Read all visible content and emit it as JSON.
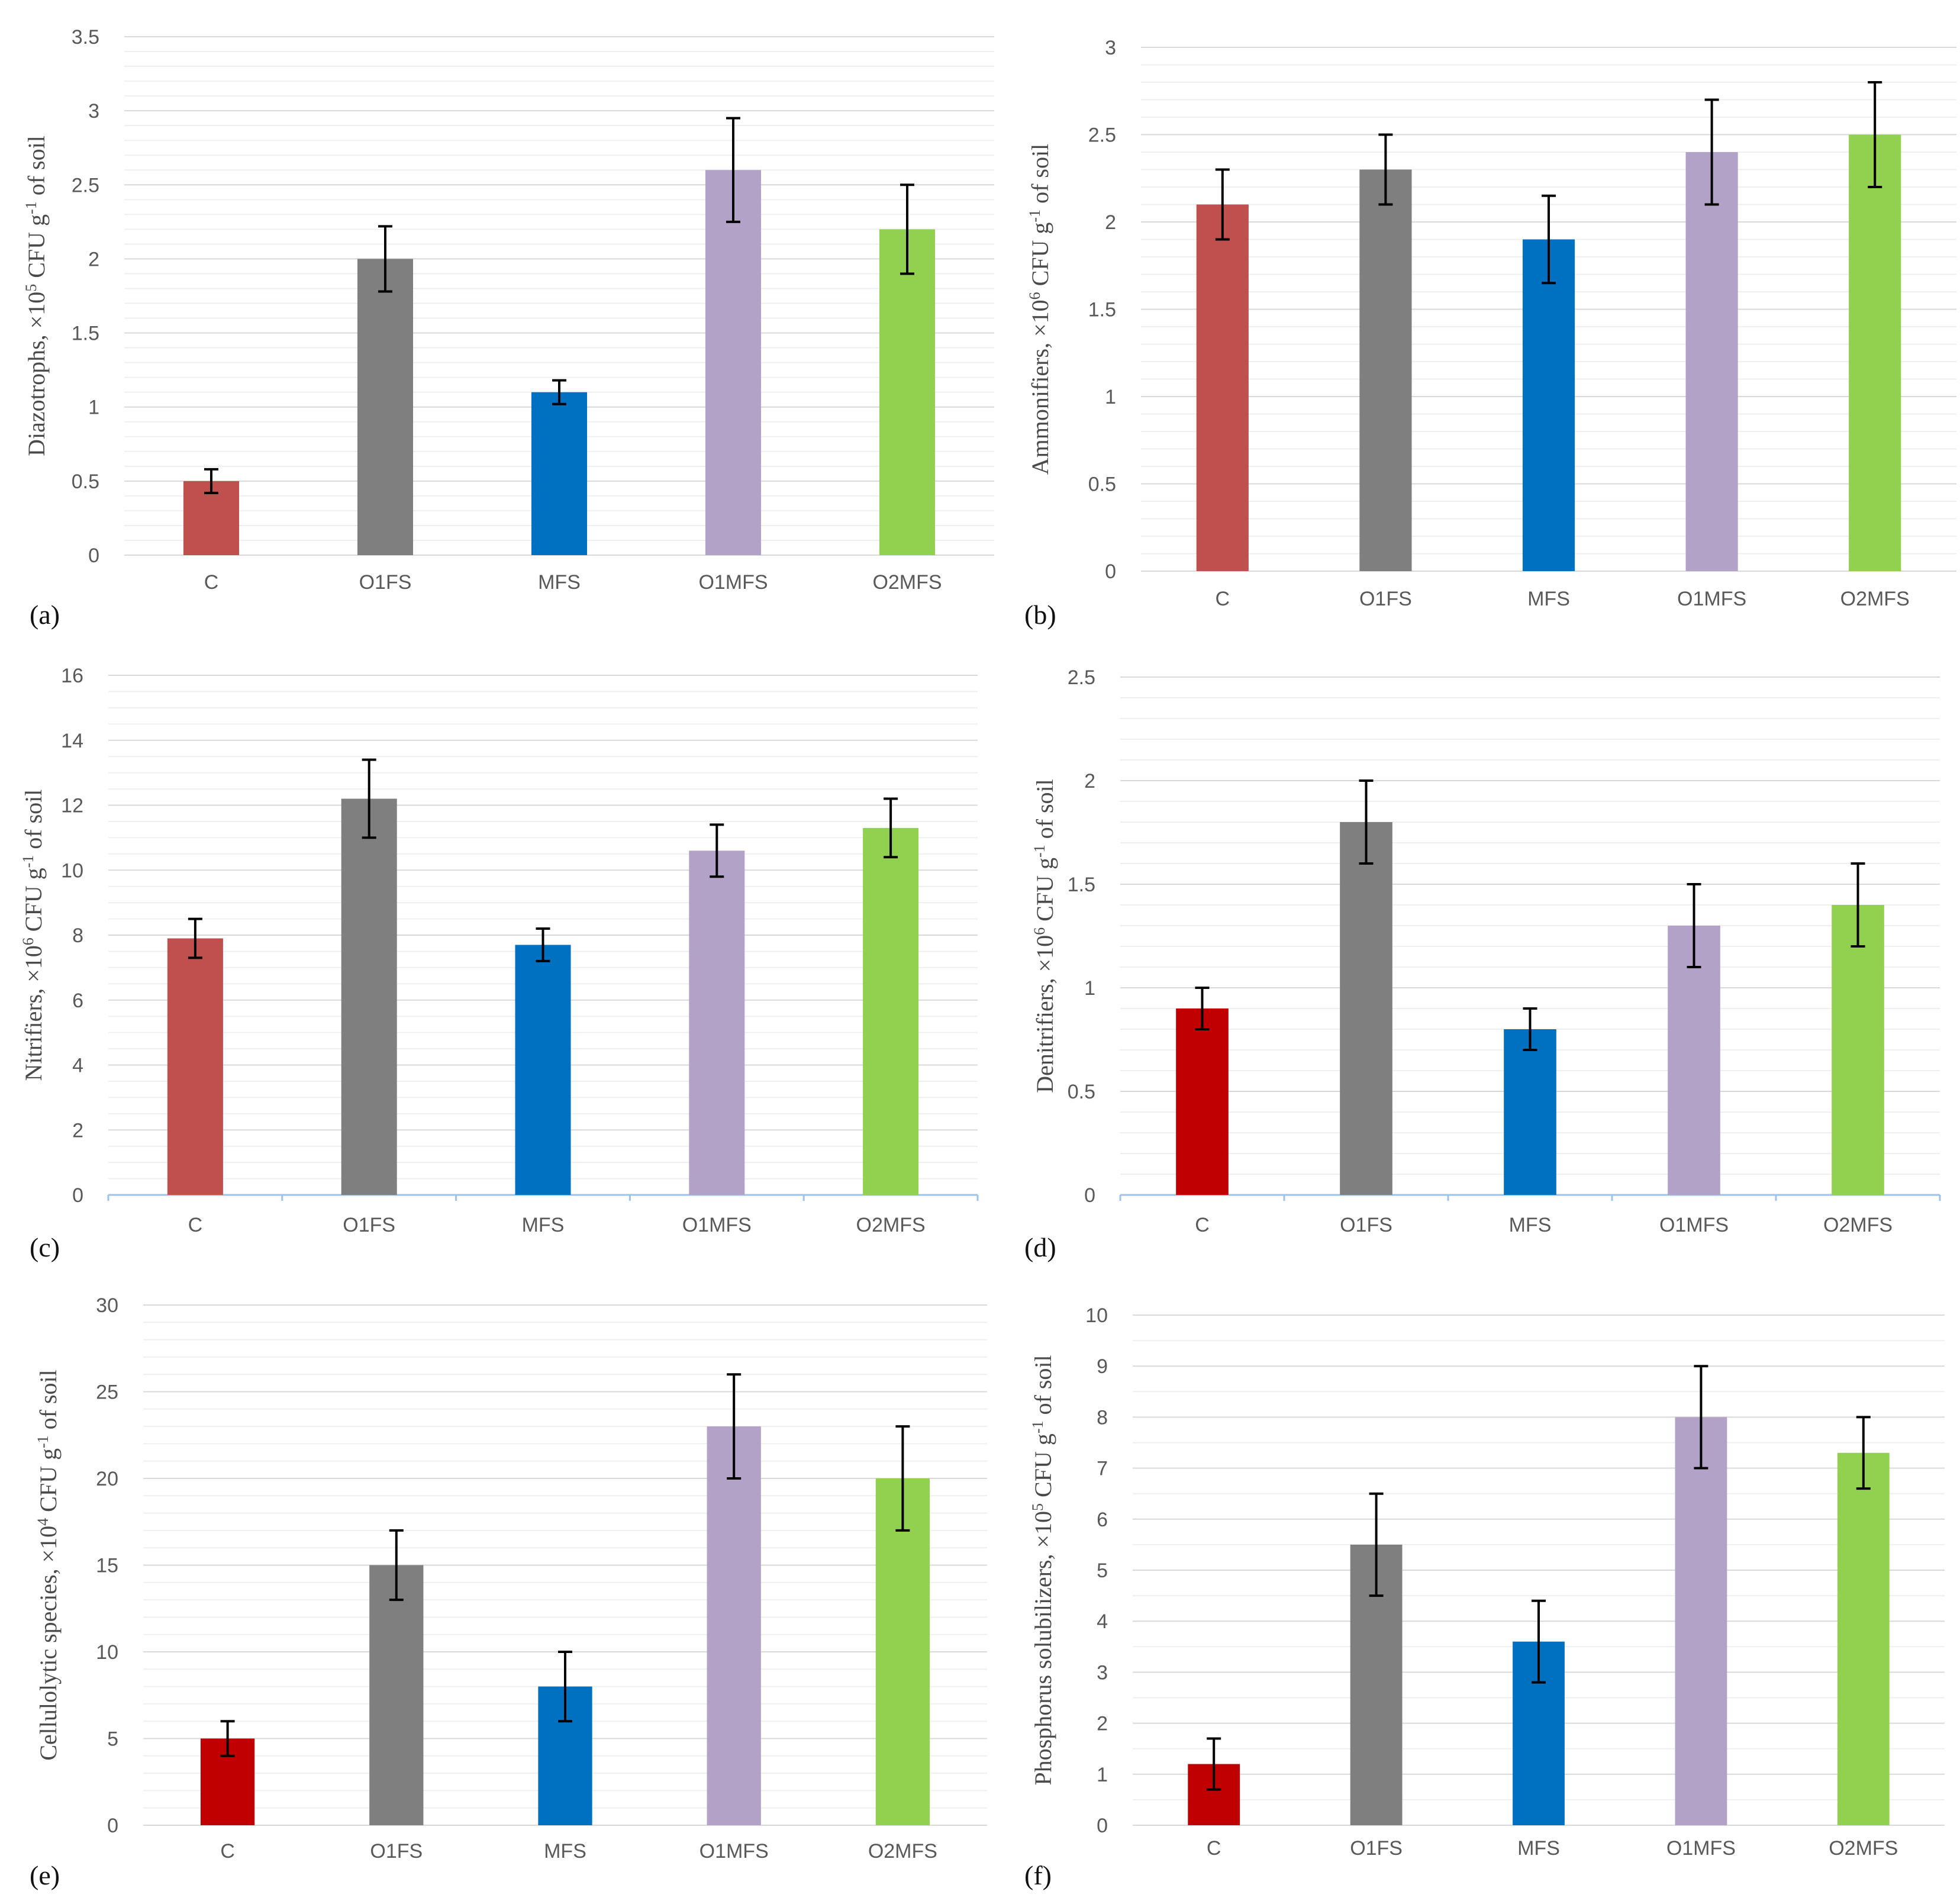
{
  "categories": [
    "C",
    "O1FS",
    "MFS",
    "O1MFS",
    "O2MFS"
  ],
  "colors": {
    "C": "#c0504d",
    "C_dark": "#c00000",
    "O1FS": "#7f7f7f",
    "MFS": "#0070c0",
    "O1MFS": "#b3a2c7",
    "O2MFS": "#92d050",
    "grid": "#d9d9d9",
    "minor_grid": "#efefef",
    "axis": "#9dc3e6",
    "error": "#000000"
  },
  "chart_data": [
    {
      "type": "bar",
      "panel_label": "(a)",
      "ylabel_parts": [
        "Diazotrophs, ×10",
        "5",
        " CFU g",
        "-1",
        " of soil"
      ],
      "categories": [
        "C",
        "O1FS",
        "MFS",
        "O1MFS",
        "O2MFS"
      ],
      "values": [
        0.5,
        2.0,
        1.1,
        2.6,
        2.2
      ],
      "errors": [
        0.08,
        0.22,
        0.08,
        0.35,
        0.3
      ],
      "ylim": [
        0,
        3.5
      ],
      "yticks": [
        0,
        0.5,
        1,
        1.5,
        2,
        2.5,
        3,
        3.5
      ],
      "ytick_labels": [
        "0",
        "0.5",
        "1",
        "1.5",
        "2",
        "2.5",
        "3",
        "3.5"
      ],
      "minor_per_major": 5,
      "bar_color_keys": [
        "C",
        "O1FS",
        "MFS",
        "O1MFS",
        "O2MFS"
      ]
    },
    {
      "type": "bar",
      "panel_label": "(b)",
      "ylabel_parts": [
        "Ammonifiers, ×10",
        "6",
        " CFU g",
        "-1",
        " of soil"
      ],
      "categories": [
        "C",
        "O1FS",
        "MFS",
        "O1MFS",
        "O2MFS"
      ],
      "values": [
        2.1,
        2.3,
        1.9,
        2.4,
        2.5
      ],
      "errors": [
        0.2,
        0.2,
        0.25,
        0.3,
        0.3
      ],
      "ylim": [
        0,
        3
      ],
      "yticks": [
        0,
        0.5,
        1,
        1.5,
        2,
        2.5,
        3
      ],
      "ytick_labels": [
        "0",
        "0.5",
        "1",
        "1.5",
        "2",
        "2.5",
        "3"
      ],
      "minor_per_major": 5,
      "bar_color_keys": [
        "C",
        "O1FS",
        "MFS",
        "O1MFS",
        "O2MFS"
      ]
    },
    {
      "type": "bar",
      "panel_label": "(c)",
      "ylabel_parts": [
        "Nitrifiers, ×10",
        "6",
        " CFU g",
        "-1",
        " of soil"
      ],
      "categories": [
        "C",
        "O1FS",
        "MFS",
        "O1MFS",
        "O2MFS"
      ],
      "values": [
        7.9,
        12.2,
        7.7,
        10.6,
        11.3
      ],
      "errors": [
        0.6,
        1.2,
        0.5,
        0.8,
        0.9
      ],
      "ylim": [
        0,
        16
      ],
      "yticks": [
        0,
        2,
        4,
        6,
        8,
        10,
        12,
        14,
        16
      ],
      "ytick_labels": [
        "0",
        "2",
        "4",
        "6",
        "8",
        "10",
        "12",
        "14",
        "16"
      ],
      "minor_per_major": 4,
      "bar_color_keys": [
        "C",
        "O1FS",
        "MFS",
        "O1MFS",
        "O2MFS"
      ]
    },
    {
      "type": "bar",
      "panel_label": "(d)",
      "ylabel_parts": [
        "Denitrifiers, ×10",
        "6",
        " CFU g",
        "-1",
        " of soil"
      ],
      "categories": [
        "C",
        "O1FS",
        "MFS",
        "O1MFS",
        "O2MFS"
      ],
      "values": [
        0.9,
        1.8,
        0.8,
        1.3,
        1.4
      ],
      "errors": [
        0.1,
        0.2,
        0.1,
        0.2,
        0.2
      ],
      "ylim": [
        0,
        2.5
      ],
      "yticks": [
        0,
        0.5,
        1,
        1.5,
        2,
        2.5
      ],
      "ytick_labels": [
        "0",
        "0.5",
        "1",
        "1.5",
        "2",
        "2.5"
      ],
      "minor_per_major": 5,
      "bar_color_keys": [
        "C_dark",
        "O1FS",
        "MFS",
        "O1MFS",
        "O2MFS"
      ]
    },
    {
      "type": "bar",
      "panel_label": "(e)",
      "ylabel_parts": [
        "Cellulolytic species, ×10",
        "4",
        " CFU g",
        "-1",
        " of soil"
      ],
      "categories": [
        "C",
        "O1FS",
        "MFS",
        "O1MFS",
        "O2MFS"
      ],
      "values": [
        5,
        15,
        8,
        23,
        20
      ],
      "errors": [
        1,
        2,
        2,
        3,
        3
      ],
      "ylim": [
        0,
        30
      ],
      "yticks": [
        0,
        5,
        10,
        15,
        20,
        25,
        30
      ],
      "ytick_labels": [
        "0",
        "5",
        "10",
        "15",
        "20",
        "25",
        "30"
      ],
      "minor_per_major": 5,
      "bar_color_keys": [
        "C_dark",
        "O1FS",
        "MFS",
        "O1MFS",
        "O2MFS"
      ]
    },
    {
      "type": "bar",
      "panel_label": "(f)",
      "ylabel_parts": [
        "Phosphorus solubilizers, ×10",
        "5",
        " CFU g",
        "-1",
        " of soil"
      ],
      "categories": [
        "C",
        "O1FS",
        "MFS",
        "O1MFS",
        "O2MFS"
      ],
      "values": [
        1.2,
        5.5,
        3.6,
        8.0,
        7.3
      ],
      "errors": [
        0.5,
        1.0,
        0.8,
        1.0,
        0.7
      ],
      "ylim": [
        0,
        10
      ],
      "yticks": [
        0,
        1,
        2,
        3,
        4,
        5,
        6,
        7,
        8,
        9,
        10
      ],
      "ytick_labels": [
        "0",
        "1",
        "2",
        "3",
        "4",
        "5",
        "6",
        "7",
        "8",
        "9",
        "10"
      ],
      "minor_per_major": 2,
      "bar_color_keys": [
        "C_dark",
        "O1FS",
        "MFS",
        "O1MFS",
        "O2MFS"
      ]
    }
  ]
}
